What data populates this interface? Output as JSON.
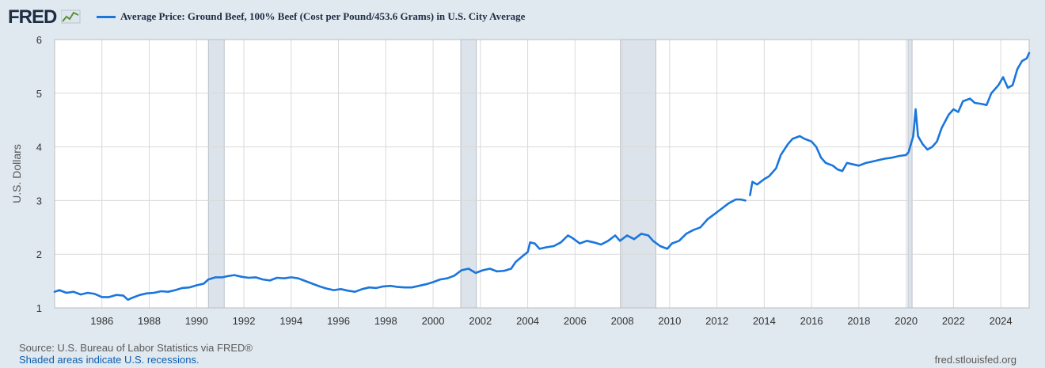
{
  "header": {
    "logo": "FRED",
    "title": "Average Price: Ground Beef, 100% Beef (Cost per Pound/453.6 Grams) in U.S. City Average"
  },
  "colors": {
    "series": "#1a76dc",
    "recession": "#dde3ea",
    "grid": "#d9d9d9",
    "plot_bg": "#ffffff",
    "page_bg": "#e1e9f0"
  },
  "chart_data": {
    "type": "line",
    "title": "Average Price: Ground Beef, 100% Beef (Cost per Pound/453.6 Grams) in U.S. City Average",
    "xlabel": "",
    "ylabel": "U.S. Dollars",
    "xlim": [
      1984.0,
      2025.2
    ],
    "ylim": [
      1,
      6
    ],
    "x_ticks": [
      "1986",
      "1988",
      "1990",
      "1992",
      "1994",
      "1996",
      "1998",
      "2000",
      "2002",
      "2004",
      "2006",
      "2008",
      "2010",
      "2012",
      "2014",
      "2016",
      "2018",
      "2020",
      "2022",
      "2024"
    ],
    "y_ticks": [
      "1",
      "2",
      "3",
      "4",
      "5",
      "6"
    ],
    "recessions": [
      [
        1990.5,
        1991.17
      ],
      [
        2001.17,
        2001.83
      ],
      [
        2007.92,
        2009.42
      ],
      [
        2020.08,
        2020.25
      ]
    ],
    "series": [
      {
        "name": "Average Price: Ground Beef, 100% Beef",
        "segments": [
          [
            [
              1984.0,
              1.3
            ],
            [
              1984.2,
              1.33
            ],
            [
              1984.5,
              1.28
            ],
            [
              1984.8,
              1.3
            ],
            [
              1985.1,
              1.25
            ],
            [
              1985.4,
              1.28
            ],
            [
              1985.7,
              1.26
            ],
            [
              1986.0,
              1.2
            ],
            [
              1986.3,
              1.2
            ],
            [
              1986.6,
              1.24
            ],
            [
              1986.9,
              1.23
            ],
            [
              1987.1,
              1.15
            ],
            [
              1987.3,
              1.19
            ],
            [
              1987.6,
              1.24
            ],
            [
              1987.9,
              1.27
            ],
            [
              1988.2,
              1.28
            ],
            [
              1988.5,
              1.31
            ],
            [
              1988.8,
              1.3
            ],
            [
              1989.1,
              1.33
            ],
            [
              1989.4,
              1.37
            ],
            [
              1989.7,
              1.38
            ],
            [
              1990.0,
              1.42
            ],
            [
              1990.3,
              1.45
            ],
            [
              1990.5,
              1.53
            ],
            [
              1990.8,
              1.57
            ],
            [
              1991.1,
              1.57
            ],
            [
              1991.3,
              1.59
            ],
            [
              1991.6,
              1.61
            ],
            [
              1991.9,
              1.58
            ],
            [
              1992.2,
              1.56
            ],
            [
              1992.5,
              1.57
            ],
            [
              1992.8,
              1.53
            ],
            [
              1993.1,
              1.51
            ],
            [
              1993.4,
              1.56
            ],
            [
              1993.7,
              1.55
            ],
            [
              1994.0,
              1.57
            ],
            [
              1994.3,
              1.55
            ],
            [
              1994.6,
              1.5
            ],
            [
              1994.9,
              1.45
            ],
            [
              1995.2,
              1.4
            ],
            [
              1995.5,
              1.36
            ],
            [
              1995.8,
              1.33
            ],
            [
              1996.1,
              1.35
            ],
            [
              1996.4,
              1.32
            ],
            [
              1996.7,
              1.3
            ],
            [
              1997.0,
              1.35
            ],
            [
              1997.3,
              1.38
            ],
            [
              1997.6,
              1.37
            ],
            [
              1997.9,
              1.4
            ],
            [
              1998.2,
              1.41
            ],
            [
              1998.5,
              1.39
            ],
            [
              1998.8,
              1.38
            ],
            [
              1999.1,
              1.38
            ],
            [
              1999.4,
              1.41
            ],
            [
              1999.7,
              1.44
            ],
            [
              2000.0,
              1.48
            ],
            [
              2000.3,
              1.53
            ],
            [
              2000.6,
              1.55
            ],
            [
              2000.9,
              1.6
            ],
            [
              2001.2,
              1.7
            ],
            [
              2001.5,
              1.73
            ],
            [
              2001.8,
              1.65
            ],
            [
              2002.1,
              1.7
            ],
            [
              2002.4,
              1.73
            ],
            [
              2002.7,
              1.68
            ],
            [
              2003.0,
              1.69
            ],
            [
              2003.3,
              1.73
            ],
            [
              2003.5,
              1.86
            ],
            [
              2003.8,
              1.97
            ],
            [
              2004.0,
              2.04
            ],
            [
              2004.1,
              2.22
            ],
            [
              2004.3,
              2.2
            ],
            [
              2004.5,
              2.1
            ],
            [
              2004.8,
              2.13
            ],
            [
              2005.1,
              2.15
            ],
            [
              2005.4,
              2.22
            ],
            [
              2005.7,
              2.35
            ],
            [
              2005.9,
              2.3
            ],
            [
              2006.2,
              2.2
            ],
            [
              2006.5,
              2.25
            ],
            [
              2006.8,
              2.22
            ],
            [
              2007.1,
              2.18
            ],
            [
              2007.4,
              2.25
            ],
            [
              2007.7,
              2.35
            ],
            [
              2007.9,
              2.25
            ],
            [
              2008.2,
              2.35
            ],
            [
              2008.5,
              2.28
            ],
            [
              2008.8,
              2.38
            ],
            [
              2009.1,
              2.35
            ],
            [
              2009.3,
              2.25
            ],
            [
              2009.6,
              2.15
            ],
            [
              2009.9,
              2.1
            ],
            [
              2010.1,
              2.2
            ],
            [
              2010.4,
              2.25
            ],
            [
              2010.7,
              2.38
            ],
            [
              2011.0,
              2.45
            ],
            [
              2011.3,
              2.5
            ],
            [
              2011.6,
              2.65
            ],
            [
              2011.9,
              2.75
            ],
            [
              2012.2,
              2.85
            ],
            [
              2012.5,
              2.95
            ],
            [
              2012.8,
              3.02
            ],
            [
              2013.0,
              3.02
            ],
            [
              2013.2,
              3.0
            ]
          ],
          [
            [
              2013.4,
              3.1
            ],
            [
              2013.5,
              3.35
            ],
            [
              2013.7,
              3.3
            ],
            [
              2014.0,
              3.4
            ],
            [
              2014.2,
              3.45
            ],
            [
              2014.5,
              3.6
            ],
            [
              2014.7,
              3.85
            ],
            [
              2015.0,
              4.05
            ],
            [
              2015.2,
              4.15
            ],
            [
              2015.5,
              4.2
            ],
            [
              2015.7,
              4.15
            ],
            [
              2016.0,
              4.1
            ],
            [
              2016.2,
              4.0
            ],
            [
              2016.4,
              3.8
            ],
            [
              2016.6,
              3.7
            ],
            [
              2016.9,
              3.65
            ],
            [
              2017.1,
              3.58
            ],
            [
              2017.3,
              3.55
            ],
            [
              2017.5,
              3.7
            ],
            [
              2017.7,
              3.68
            ],
            [
              2018.0,
              3.65
            ],
            [
              2018.3,
              3.7
            ],
            [
              2018.5,
              3.72
            ],
            [
              2018.8,
              3.75
            ],
            [
              2019.1,
              3.78
            ],
            [
              2019.4,
              3.8
            ],
            [
              2019.7,
              3.83
            ],
            [
              2020.0,
              3.85
            ],
            [
              2020.1,
              3.9
            ],
            [
              2020.3,
              4.2
            ],
            [
              2020.4,
              4.7
            ],
            [
              2020.5,
              4.2
            ],
            [
              2020.7,
              4.05
            ],
            [
              2020.9,
              3.95
            ],
            [
              2021.1,
              4.0
            ],
            [
              2021.3,
              4.1
            ],
            [
              2021.5,
              4.35
            ],
            [
              2021.8,
              4.6
            ],
            [
              2022.0,
              4.7
            ],
            [
              2022.2,
              4.65
            ],
            [
              2022.4,
              4.85
            ],
            [
              2022.7,
              4.9
            ],
            [
              2022.9,
              4.82
            ],
            [
              2023.2,
              4.8
            ],
            [
              2023.4,
              4.78
            ],
            [
              2023.6,
              5.0
            ],
            [
              2023.9,
              5.15
            ],
            [
              2024.1,
              5.3
            ],
            [
              2024.3,
              5.1
            ],
            [
              2024.5,
              5.15
            ],
            [
              2024.7,
              5.45
            ],
            [
              2024.9,
              5.6
            ],
            [
              2025.1,
              5.65
            ],
            [
              2025.2,
              5.75
            ]
          ]
        ]
      }
    ]
  },
  "footer": {
    "source": "Source: U.S. Bureau of Labor Statistics via FRED®",
    "shading_note": "Shaded areas indicate U.S. recessions.",
    "site": "fred.stlouisfed.org"
  }
}
